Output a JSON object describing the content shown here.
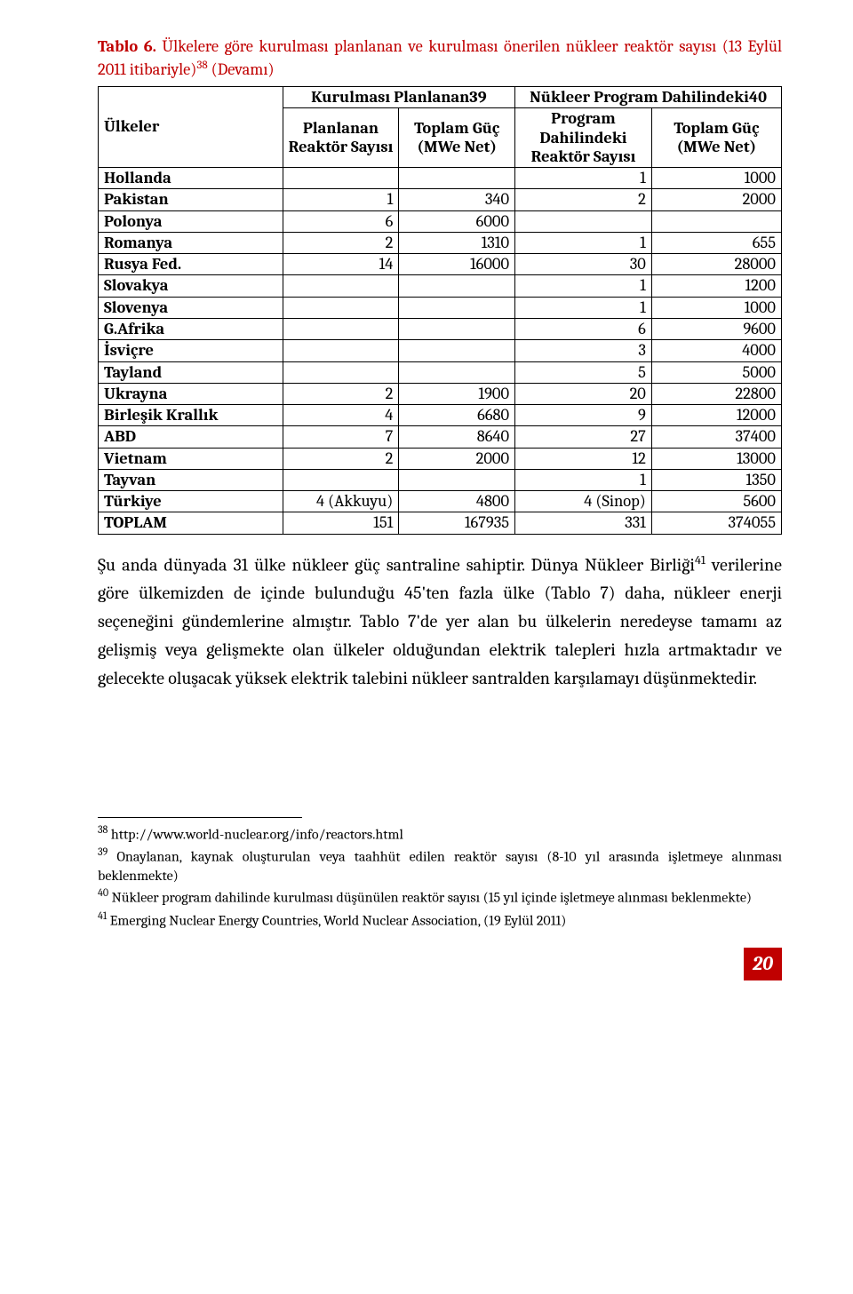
{
  "title": {
    "lead_bold": "Tablo 6.",
    "rest": " Ülkelere göre kurulması planlanan ve kurulması önerilen nükleer reaktör sayısı (13 Eylül 2011 itibariyle)",
    "sup1": "38",
    "tail": " (Devamı)"
  },
  "headers": {
    "countries": "Ülkeler",
    "planned_top": "Kurulması Planlanan",
    "planned_sup": "39",
    "program_top": "Nükleer Program Dahilindeki",
    "program_sup": "40",
    "sub_plan_n": "Planlanan Reaktör Sayısı",
    "sub_plan_mw": "Toplam Güç (MWe Net)",
    "sub_prog_n": "Program Dahilindeki Reaktör Sayısı",
    "sub_prog_mw": "Toplam Güç (MWe Net)"
  },
  "rows": [
    {
      "country": "Hollanda",
      "pn": "",
      "pmw": "",
      "gn": "1",
      "gmw": "1000"
    },
    {
      "country": "Pakistan",
      "pn": "1",
      "pmw": "340",
      "gn": "2",
      "gmw": "2000"
    },
    {
      "country": "Polonya",
      "pn": "6",
      "pmw": "6000",
      "gn": "",
      "gmw": ""
    },
    {
      "country": "Romanya",
      "pn": "2",
      "pmw": "1310",
      "gn": "1",
      "gmw": "655"
    },
    {
      "country": "Rusya Fed.",
      "pn": "14",
      "pmw": "16000",
      "gn": "30",
      "gmw": "28000"
    },
    {
      "country": "Slovakya",
      "pn": "",
      "pmw": "",
      "gn": "1",
      "gmw": "1200"
    },
    {
      "country": "Slovenya",
      "pn": "",
      "pmw": "",
      "gn": "1",
      "gmw": "1000"
    },
    {
      "country": "G.Afrika",
      "pn": "",
      "pmw": "",
      "gn": "6",
      "gmw": "9600"
    },
    {
      "country": "İsviçre",
      "pn": "",
      "pmw": "",
      "gn": "3",
      "gmw": "4000"
    },
    {
      "country": "Tayland",
      "pn": "",
      "pmw": "",
      "gn": "5",
      "gmw": "5000"
    },
    {
      "country": "Ukrayna",
      "pn": "2",
      "pmw": "1900",
      "gn": "20",
      "gmw": "22800"
    },
    {
      "country": "Birleşik Krallık",
      "pn": "4",
      "pmw": "6680",
      "gn": "9",
      "gmw": "12000"
    },
    {
      "country": "ABD",
      "pn": "7",
      "pmw": "8640",
      "gn": "27",
      "gmw": "37400"
    },
    {
      "country": "Vietnam",
      "pn": "2",
      "pmw": "2000",
      "gn": "12",
      "gmw": "13000"
    },
    {
      "country": "Tayvan",
      "pn": "",
      "pmw": "",
      "gn": "1",
      "gmw": "1350"
    },
    {
      "country": "Türkiye",
      "pn": "4 (Akkuyu)",
      "pmw": "4800",
      "gn": "4 (Sinop)",
      "gmw": "5600"
    },
    {
      "country": "TOPLAM",
      "pn": "151",
      "pmw": "167935",
      "gn": "331",
      "gmw": "374055"
    }
  ],
  "body": {
    "t1": "Şu anda dünyada 31 ülke nükleer güç santraline sahiptir. Dünya Nükleer Birliği",
    "sup": "41",
    "t2": " verilerine göre ülkemizden de içinde bulunduğu 45'ten fazla ülke (Tablo 7) daha, nükleer enerji seçeneğini gündemlerine almıştır. Tablo 7'de yer alan bu ülkelerin neredeyse tamamı az gelişmiş veya gelişmekte olan ülkeler olduğundan elektrik talepleri hızla artmaktadır ve gelecekte oluşacak yüksek elektrik talebini nükleer santralden karşılamayı düşünmektedir."
  },
  "footnotes": {
    "f38_sup": "38",
    "f38": " http://www.world-nuclear.org/info/reactors.html",
    "f39_sup": "39",
    "f39": " Onaylanan, kaynak oluşturulan veya taahhüt edilen reaktör sayısı (8-10 yıl arasında işletmeye alınması beklenmekte)",
    "f40_sup": "40",
    "f40": " Nükleer program dahilinde kurulması düşünülen reaktör sayısı (15 yıl içinde işletmeye alınması beklenmekte)",
    "f41_sup": "41",
    "f41": " Emerging Nuclear Energy Countries, World Nuclear Association, (19 Eylül 2011)"
  },
  "page_number": "20",
  "colors": {
    "accent_red": "#c00000",
    "text": "#000000",
    "page_num_text": "#ffffff"
  }
}
